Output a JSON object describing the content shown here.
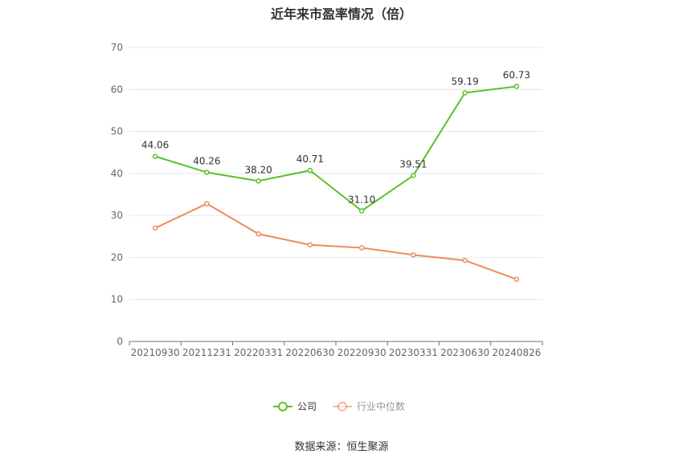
{
  "chart_data": {
    "type": "line",
    "title": "近年来市盈率情况（倍）",
    "categories": [
      "20210930",
      "20211231",
      "20220331",
      "20220630",
      "20220930",
      "20230331",
      "20230630",
      "20240826"
    ],
    "ylim": [
      0,
      70
    ],
    "yticks": [
      0,
      10,
      20,
      30,
      40,
      50,
      60,
      70
    ],
    "grid": true,
    "legend_position": "bottom",
    "series": [
      {
        "name": "公司",
        "color": "#5cc12b",
        "values": [
          44.06,
          40.26,
          38.2,
          40.71,
          31.1,
          39.51,
          59.19,
          60.73
        ],
        "labels": [
          "44.06",
          "40.26",
          "38.20",
          "40.71",
          "31.10",
          "39.51",
          "59.19",
          "60.73"
        ]
      },
      {
        "name": "行业中位数",
        "color": "#f08a5d",
        "values": [
          27.0,
          32.8,
          25.6,
          23.0,
          22.3,
          20.6,
          19.3,
          14.8
        ]
      }
    ]
  },
  "source": "数据来源：恒生聚源"
}
